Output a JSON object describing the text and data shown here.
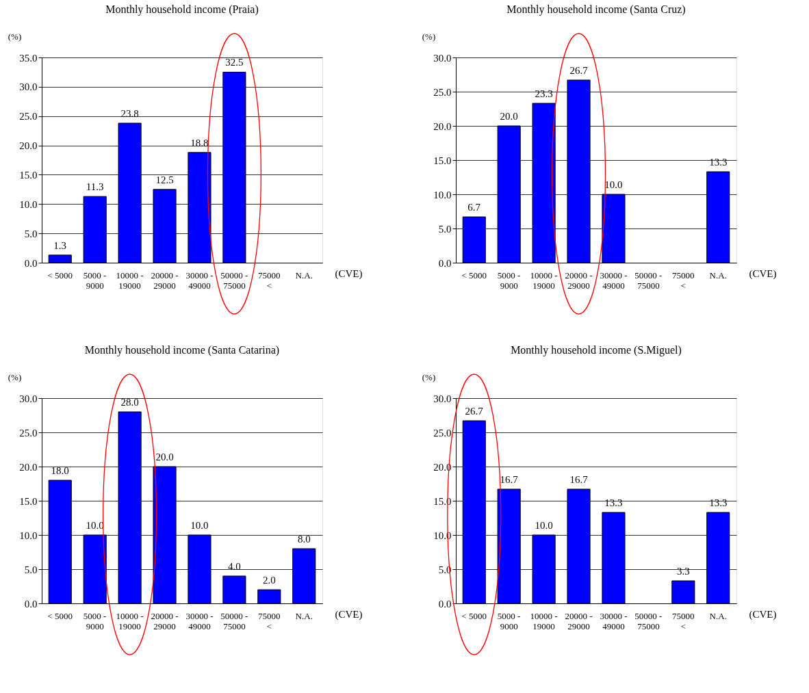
{
  "chart_data": [
    {
      "type": "bar",
      "title": "Monthly household income (Praia)",
      "ylabel": "(%)",
      "xlabel": "(CVE)",
      "categories": [
        "< 5000",
        "5000 -\n9000",
        "10000 -\n19000",
        "20000 -\n29000",
        "30000 -\n49000",
        "50000 -\n75000",
        "75000\n<",
        "N.A."
      ],
      "values": [
        1.3,
        11.3,
        23.8,
        12.5,
        18.8,
        32.5,
        null,
        null
      ],
      "value_labels": [
        "1.3",
        "11.3",
        "23.8",
        "12.5",
        "18.8",
        "32.5",
        null,
        null
      ],
      "color": "#0000ff",
      "ylim": [
        0,
        35
      ],
      "yticks": [
        {
          "value": 0,
          "label": "0.0"
        },
        {
          "value": 5,
          "label": "5.0"
        },
        {
          "value": 10,
          "label": "10.0"
        },
        {
          "value": 15,
          "label": "15.0"
        },
        {
          "value": 20,
          "label": "20.0"
        },
        {
          "value": 25,
          "label": "25.0"
        },
        {
          "value": 30,
          "label": "30.0"
        },
        {
          "value": 35,
          "label": "35.0"
        }
      ],
      "grid": "y"
    },
    {
      "type": "bar",
      "title": "Monthly household income (Santa Cruz)",
      "ylabel": "(%)",
      "xlabel": "(CVE)",
      "categories": [
        "< 5000",
        "5000 -\n9000",
        "10000 -\n19000",
        "20000 -\n29000",
        "30000 -\n49000",
        "50000 -\n75000",
        "75000\n<",
        "N.A."
      ],
      "values": [
        6.7,
        20.0,
        23.3,
        26.7,
        10.0,
        null,
        null,
        13.3
      ],
      "value_labels": [
        "6.7",
        "20.0",
        "23.3",
        "26.7",
        "10.0",
        null,
        null,
        "13.3"
      ],
      "color": "#0000ff",
      "ylim": [
        0,
        30
      ],
      "yticks": [
        {
          "value": 0,
          "label": "0.0"
        },
        {
          "value": 5,
          "label": "5.0"
        },
        {
          "value": 10,
          "label": "10.0"
        },
        {
          "value": 15,
          "label": "15.0"
        },
        {
          "value": 20,
          "label": "20.0"
        },
        {
          "value": 25,
          "label": "25.0"
        },
        {
          "value": 30,
          "label": "30.0"
        }
      ],
      "grid": "y"
    },
    {
      "type": "bar",
      "title": "Monthly household income (Santa Catarina)",
      "ylabel": "(%)",
      "xlabel": "(CVE)",
      "categories": [
        "< 5000",
        "5000 -\n9000",
        "10000 -\n19000",
        "20000 -\n29000",
        "30000 -\n49000",
        "50000 -\n75000",
        "75000\n<",
        "N.A."
      ],
      "values": [
        18.0,
        10.0,
        28.0,
        20.0,
        10.0,
        4.0,
        2.0,
        8.0
      ],
      "value_labels": [
        "18.0",
        "10.0",
        "28.0",
        "20.0",
        "10.0",
        "4.0",
        "2.0",
        "8.0"
      ],
      "color": "#0000ff",
      "ylim": [
        0,
        30
      ],
      "yticks": [
        {
          "value": 0,
          "label": "0.0"
        },
        {
          "value": 5,
          "label": "5.0"
        },
        {
          "value": 10,
          "label": "10.0"
        },
        {
          "value": 15,
          "label": "15.0"
        },
        {
          "value": 20,
          "label": "20.0"
        },
        {
          "value": 25,
          "label": "25.0"
        },
        {
          "value": 30,
          "label": "30.0"
        }
      ],
      "grid": "y"
    },
    {
      "type": "bar",
      "title": "Monthly household income (S.Miguel)",
      "ylabel": "(%)",
      "xlabel": "(CVE)",
      "categories": [
        "< 5000",
        "5000 -\n9000",
        "10000 -\n19000",
        "20000 -\n29000",
        "30000 -\n49000",
        "50000 -\n75000",
        "75000\n<",
        "N.A."
      ],
      "values": [
        26.7,
        16.7,
        10.0,
        16.7,
        13.3,
        null,
        3.3,
        13.3
      ],
      "value_labels": [
        "26.7",
        "16.7",
        "10.0",
        "16.7",
        "13.3",
        null,
        "3.3",
        "13.3"
      ],
      "color": "#0000ff",
      "ylim": [
        0,
        30
      ],
      "yticks": [
        {
          "value": 0,
          "label": "0.0"
        },
        {
          "value": 5,
          "label": "5.0"
        },
        {
          "value": 10,
          "label": "10.0"
        },
        {
          "value": 15,
          "label": "15.0"
        },
        {
          "value": 20,
          "label": "20.0"
        },
        {
          "value": 25,
          "label": "25.0"
        },
        {
          "value": 30,
          "label": "30.0"
        }
      ],
      "grid": "y"
    }
  ]
}
